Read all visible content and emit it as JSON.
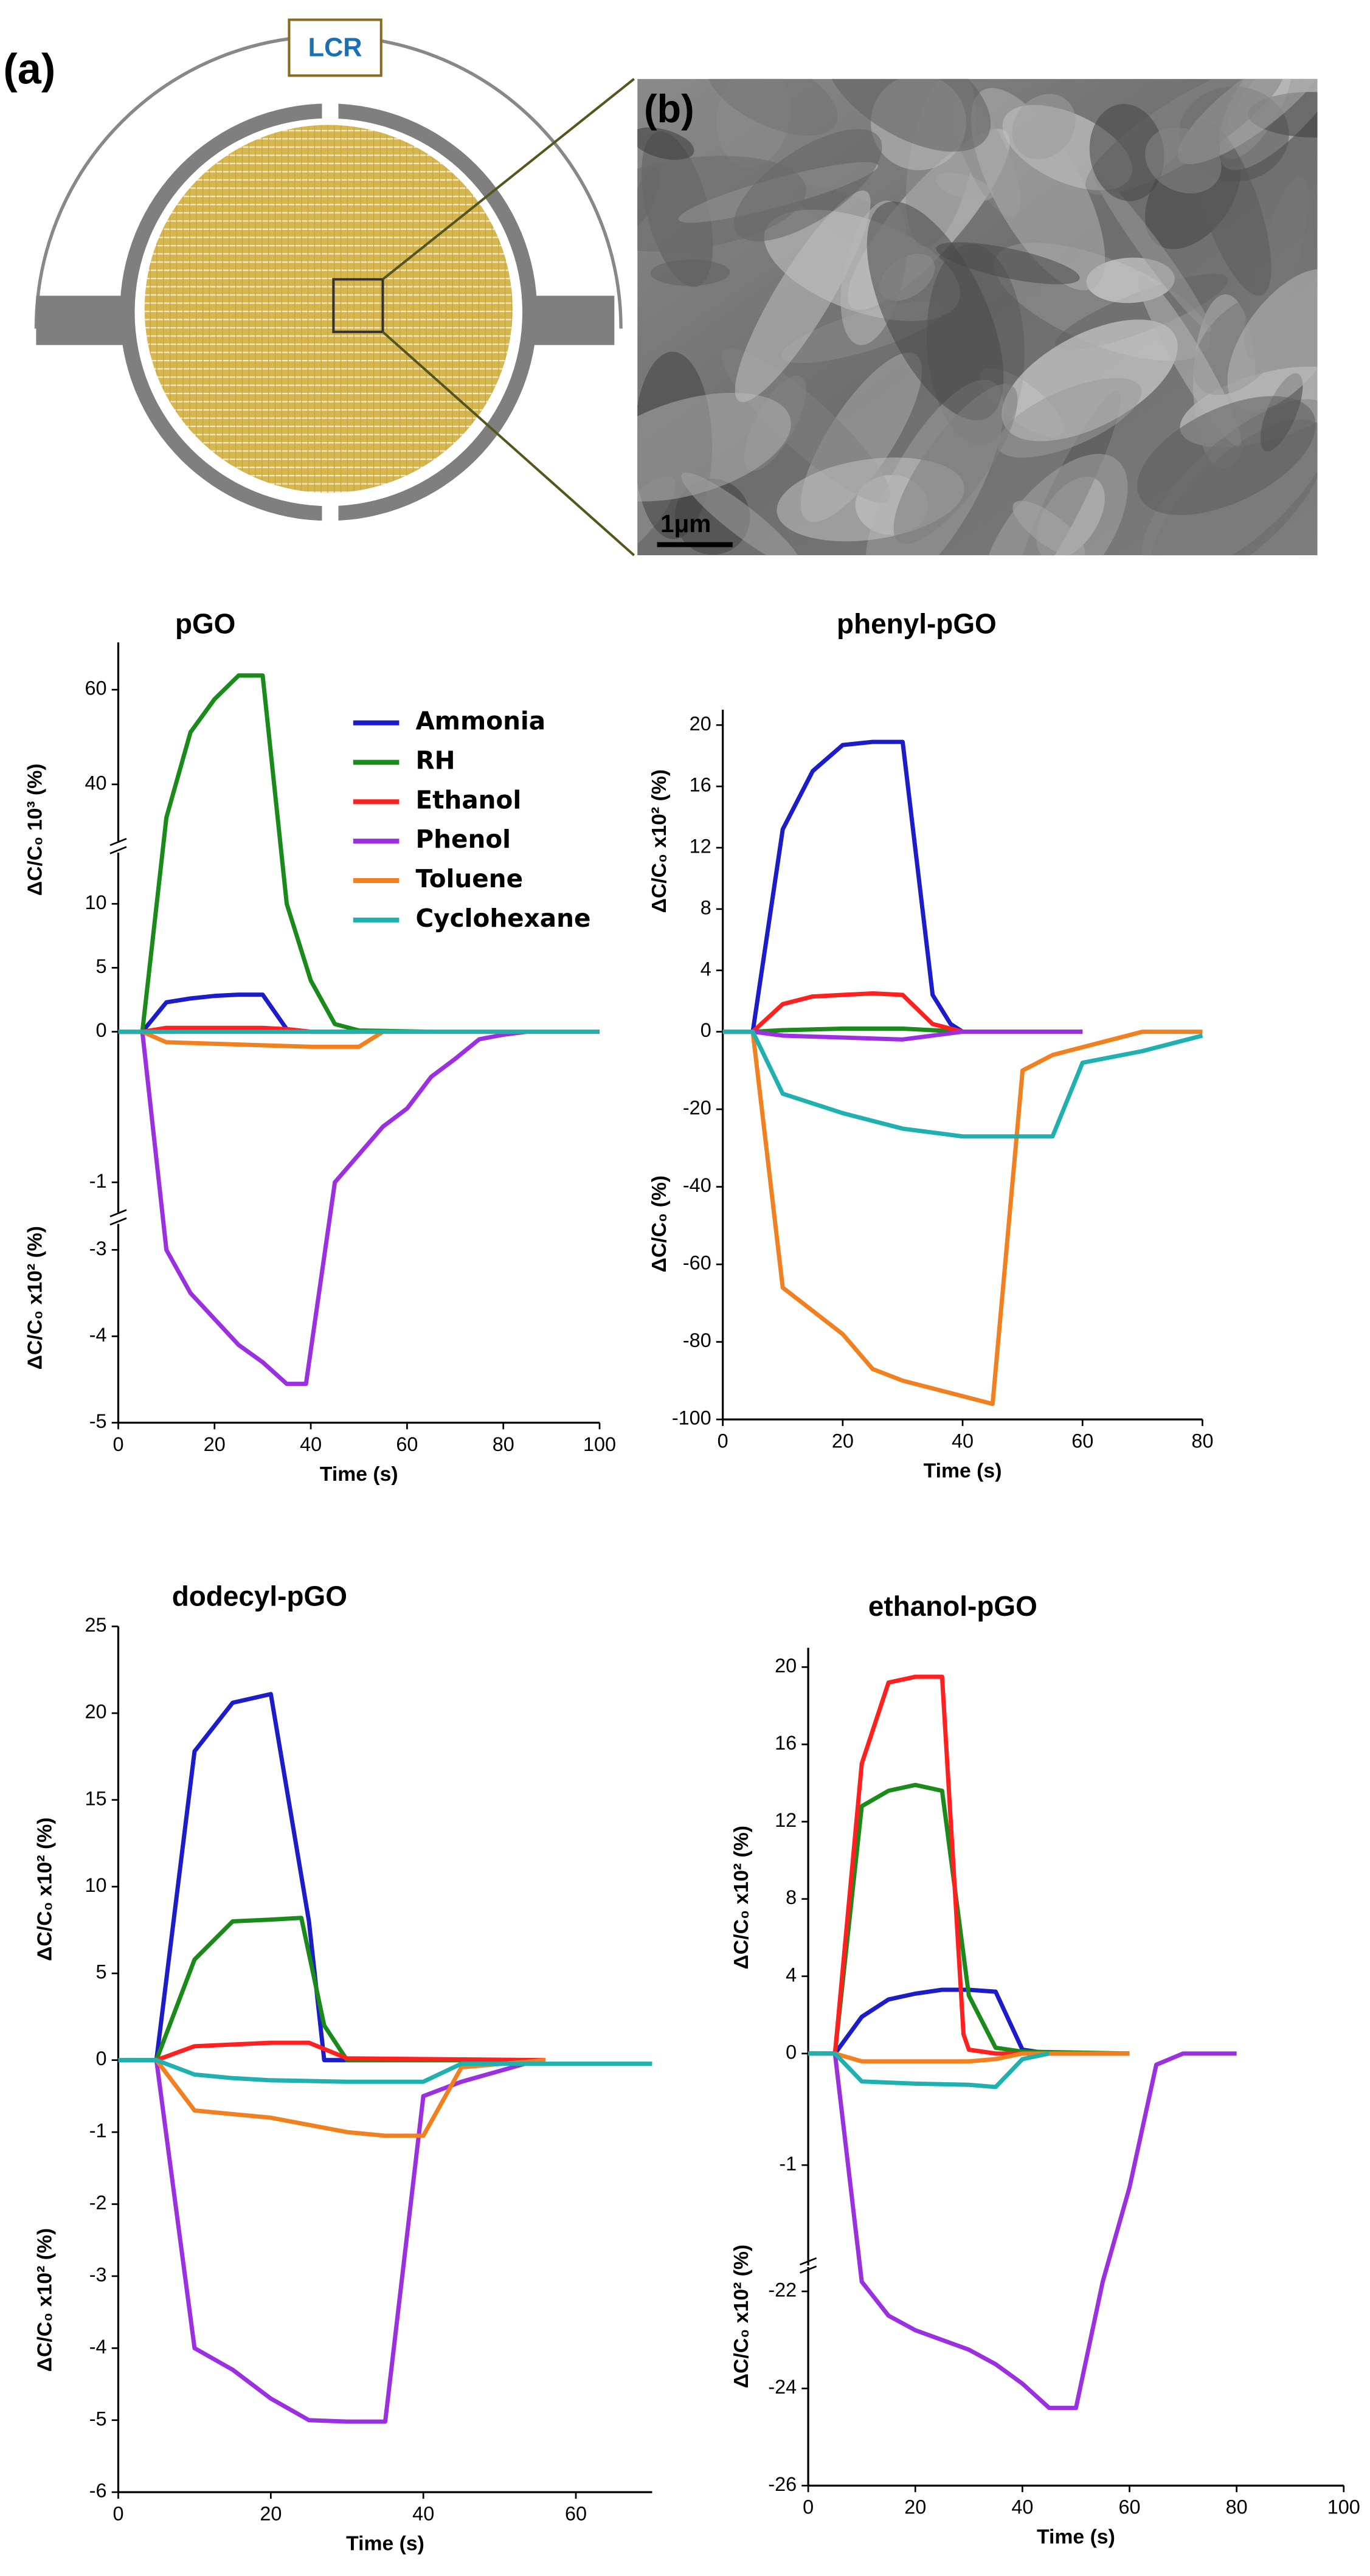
{
  "panel_a": {
    "label": "(a)",
    "meter": "LCR"
  },
  "panel_b": {
    "label": "(b)",
    "scale_bar": "1μm"
  },
  "chart_data": [
    {
      "type": "line",
      "title": "pGO",
      "xlabel": "Time (s)",
      "xlim": [
        0,
        100
      ],
      "xticks": [
        0,
        20,
        40,
        60,
        80,
        100
      ],
      "ylabels": [
        "ΔC/C₀ 10³ (%)",
        "ΔC/C₀ x10² (%)"
      ],
      "legend": true,
      "y_segments": [
        {
          "ylim": [
            28,
            70
          ],
          "yticks": [
            40,
            60
          ]
        },
        {
          "ylim": [
            0,
            14
          ],
          "yticks": [
            0,
            5,
            10
          ]
        },
        {
          "ylim": [
            -1.2,
            0
          ],
          "yticks": [
            -1
          ]
        },
        {
          "ylim": [
            -5,
            -2.7
          ],
          "yticks": [
            -3,
            -4,
            -5
          ]
        }
      ],
      "series": [
        {
          "name": "Ammonia",
          "color": "#1c1cc8",
          "x": [
            0,
            5,
            10,
            15,
            20,
            25,
            30,
            35,
            40,
            50
          ],
          "values": [
            0,
            0,
            2.3,
            2.6,
            2.8,
            2.9,
            2.9,
            0.2,
            0,
            0
          ]
        },
        {
          "name": "RH",
          "color": "#1a8a1a",
          "x": [
            0,
            5,
            10,
            15,
            20,
            25,
            30,
            35,
            40,
            45,
            50,
            65
          ],
          "values": [
            0,
            0,
            33,
            51,
            58,
            63,
            63,
            10,
            4,
            0.6,
            0.1,
            0
          ]
        },
        {
          "name": "Ethanol",
          "color": "#ff2020",
          "x": [
            0,
            5,
            10,
            30,
            35,
            40,
            55
          ],
          "values": [
            0,
            0,
            0.3,
            0.3,
            0.2,
            0,
            0
          ]
        },
        {
          "name": "Phenol",
          "color": "#9b30e0",
          "x": [
            0,
            5,
            10,
            15,
            20,
            25,
            30,
            35,
            39,
            45,
            55,
            60,
            65,
            70,
            75,
            80,
            85
          ],
          "values": [
            0,
            0,
            -3.0,
            -3.5,
            -3.8,
            -4.1,
            -4.3,
            -4.55,
            -4.55,
            -1.0,
            -0.63,
            -0.51,
            -0.3,
            -0.18,
            -0.05,
            -0.02,
            0
          ]
        },
        {
          "name": "Toluene",
          "color": "#f08020",
          "x": [
            0,
            5,
            10,
            20,
            30,
            40,
            50,
            55,
            100
          ],
          "values": [
            0,
            0,
            -0.07,
            -0.08,
            -0.09,
            -0.1,
            -0.1,
            0,
            0
          ]
        },
        {
          "name": "Cyclohexane",
          "color": "#20b0b0",
          "x": [
            0,
            100
          ],
          "values": [
            0,
            0
          ]
        }
      ]
    },
    {
      "type": "line",
      "title": "phenyl-pGO",
      "xlabel": "Time (s)",
      "xlim": [
        0,
        80
      ],
      "xticks": [
        0,
        20,
        40,
        60,
        80
      ],
      "ylabels": [
        "ΔC/C₀ x10² (%)",
        "ΔC/C₀ (%)"
      ],
      "y_segments": [
        {
          "ylim": [
            0,
            21
          ],
          "yticks": [
            0,
            4,
            8,
            12,
            16,
            20
          ]
        },
        {
          "ylim": [
            -100,
            0
          ],
          "yticks": [
            -20,
            -40,
            -60,
            -80,
            -100
          ]
        }
      ],
      "series": [
        {
          "color": "#1c1cc8",
          "x": [
            0,
            5,
            10,
            15,
            20,
            25,
            30,
            35,
            38,
            40,
            60
          ],
          "values": [
            0,
            0,
            13.2,
            17,
            18.7,
            18.9,
            18.9,
            2.4,
            0.5,
            0,
            0
          ]
        },
        {
          "color": "#1a8a1a",
          "x": [
            0,
            5,
            10,
            20,
            30,
            35,
            40
          ],
          "values": [
            0,
            0,
            0.1,
            0.2,
            0.2,
            0.1,
            0
          ]
        },
        {
          "color": "#ff2020",
          "x": [
            0,
            5,
            10,
            15,
            20,
            25,
            30,
            35,
            40
          ],
          "values": [
            0,
            0,
            1.8,
            2.3,
            2.4,
            2.5,
            2.4,
            0.5,
            0
          ]
        },
        {
          "color": "#9b30e0",
          "x": [
            0,
            5,
            10,
            20,
            30,
            35,
            40,
            60
          ],
          "values": [
            0,
            0,
            -1,
            -1.5,
            -2,
            -1,
            0,
            0
          ]
        },
        {
          "color": "#f08020",
          "x": [
            0,
            5,
            10,
            20,
            25,
            30,
            35,
            40,
            45,
            50,
            55,
            60,
            70,
            80
          ],
          "values": [
            0,
            0,
            -66,
            -78,
            -87,
            -90,
            -92,
            -94,
            -96,
            -10,
            -6,
            -4,
            0,
            0
          ]
        },
        {
          "color": "#20b0b0",
          "x": [
            0,
            5,
            10,
            20,
            30,
            40,
            45,
            55,
            60,
            70,
            80
          ],
          "values": [
            0,
            0,
            -16,
            -21,
            -25,
            -27,
            -27,
            -27,
            -8,
            -5,
            -1
          ]
        }
      ]
    },
    {
      "type": "line",
      "title": "dodecyl-pGO",
      "xlabel": "Time (s)",
      "xlim": [
        0,
        70
      ],
      "xticks": [
        0,
        20,
        40,
        60
      ],
      "ylabels": [
        "ΔC/C₀ x10² (%)",
        "ΔC/C₀ x10² (%)"
      ],
      "y_segments": [
        {
          "ylim": [
            0,
            25
          ],
          "yticks": [
            0,
            5,
            10,
            15,
            20,
            25
          ]
        },
        {
          "ylim": [
            -6,
            0
          ],
          "yticks": [
            -1,
            -2,
            -3,
            -4,
            -5,
            -6
          ]
        }
      ],
      "series": [
        {
          "color": "#1c1cc8",
          "x": [
            0,
            5,
            10,
            15,
            20,
            25,
            27,
            30,
            45
          ],
          "values": [
            0,
            0,
            17.8,
            20.6,
            21.1,
            8,
            0,
            0,
            0
          ]
        },
        {
          "color": "#1a8a1a",
          "x": [
            0,
            5,
            10,
            15,
            20,
            24,
            27,
            30,
            50
          ],
          "values": [
            0,
            0,
            5.8,
            8,
            8.1,
            8.2,
            2,
            0,
            0
          ]
        },
        {
          "color": "#ff2020",
          "x": [
            0,
            5,
            10,
            15,
            20,
            25,
            30,
            56
          ],
          "values": [
            0,
            0,
            0.8,
            0.9,
            1.0,
            1.0,
            0.1,
            0
          ]
        },
        {
          "color": "#9b30e0",
          "x": [
            0,
            5,
            10,
            15,
            20,
            25,
            30,
            35,
            40,
            45,
            50,
            55
          ],
          "values": [
            0,
            0,
            -4.0,
            -4.3,
            -4.7,
            -5.0,
            -5.02,
            -5.02,
            -0.5,
            -0.3,
            -0.15,
            0
          ]
        },
        {
          "color": "#f08020",
          "x": [
            0,
            5,
            10,
            20,
            25,
            30,
            35,
            40,
            45,
            56
          ],
          "values": [
            0,
            0,
            -0.7,
            -0.8,
            -0.9,
            -1.0,
            -1.05,
            -1.05,
            -0.1,
            0
          ]
        },
        {
          "color": "#20b0b0",
          "x": [
            0,
            5,
            10,
            15,
            20,
            30,
            35,
            40,
            45,
            70
          ],
          "values": [
            0,
            0,
            -0.2,
            -0.25,
            -0.28,
            -0.3,
            -0.3,
            -0.3,
            -0.05,
            -0.05
          ]
        }
      ]
    },
    {
      "type": "line",
      "title": "ethanol-pGO",
      "xlabel": "Time (s)",
      "xlim": [
        0,
        100
      ],
      "xticks": [
        0,
        20,
        40,
        60,
        80,
        100
      ],
      "ylabels": [
        "ΔC/C₀ x10² (%)",
        "ΔC/C₀ x10² (%)"
      ],
      "y_segments": [
        {
          "ylim": [
            0,
            21
          ],
          "yticks": [
            0,
            4,
            8,
            12,
            16,
            20
          ]
        },
        {
          "ylim": [
            -1.9,
            0
          ],
          "yticks": [
            -1
          ]
        },
        {
          "ylim": [
            -26,
            -21.5
          ],
          "yticks": [
            -22,
            -24,
            -26
          ]
        }
      ],
      "series": [
        {
          "color": "#1c1cc8",
          "x": [
            0,
            5,
            10,
            15,
            20,
            25,
            30,
            35,
            40,
            45,
            60
          ],
          "values": [
            0,
            0,
            1.9,
            2.8,
            3.1,
            3.3,
            3.3,
            3.2,
            0.2,
            0,
            0
          ]
        },
        {
          "color": "#1a8a1a",
          "x": [
            0,
            5,
            10,
            15,
            20,
            25,
            30,
            35,
            40,
            60
          ],
          "values": [
            0,
            0,
            12.8,
            13.6,
            13.9,
            13.6,
            3,
            0.3,
            0.1,
            0
          ]
        },
        {
          "color": "#ff2020",
          "x": [
            0,
            5,
            10,
            15,
            20,
            25,
            29,
            30,
            35,
            60
          ],
          "values": [
            0,
            0,
            15,
            19.2,
            19.5,
            19.5,
            1,
            0.2,
            0,
            0
          ]
        },
        {
          "color": "#9b30e0",
          "x": [
            0,
            5,
            10,
            15,
            20,
            25,
            30,
            35,
            40,
            45,
            50,
            55,
            60,
            65,
            70,
            80
          ],
          "values": [
            0,
            0,
            -21.8,
            -22.5,
            -22.8,
            -23,
            -23.2,
            -23.5,
            -23.9,
            -24.4,
            -24.4,
            -21.8,
            -1.2,
            -0.1,
            0,
            0
          ]
        },
        {
          "color": "#f08020",
          "x": [
            0,
            5,
            10,
            20,
            30,
            35,
            40,
            60
          ],
          "values": [
            0,
            0,
            -0.07,
            -0.07,
            -0.07,
            -0.05,
            0,
            0
          ]
        },
        {
          "color": "#20b0b0",
          "x": [
            0,
            5,
            10,
            20,
            30,
            35,
            40,
            45
          ],
          "values": [
            0,
            0,
            -0.25,
            -0.27,
            -0.28,
            -0.3,
            -0.05,
            0
          ]
        }
      ]
    }
  ]
}
